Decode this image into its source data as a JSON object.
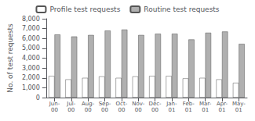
{
  "chart_data": {
    "type": "bar",
    "categories": [
      "Jun-\n00",
      "Jul-\n00",
      "Aug-\n00",
      "Sep-\n00",
      "Oct-\n00",
      "Nov-\n00",
      "Dec-\n00",
      "Jan-\n01",
      "Feb-\n01",
      "Mar-\n01",
      "Apr-\n01",
      "May-\n01"
    ],
    "series": [
      {
        "name": "Profile test requests",
        "color": "#ffffff",
        "values": [
          2200,
          1850,
          2000,
          2150,
          2000,
          2150,
          2200,
          2200,
          1950,
          2000,
          1850,
          1500
        ]
      },
      {
        "name": "Routine test requests",
        "color": "#b0b0b0",
        "values": [
          6400,
          6200,
          6350,
          6800,
          6900,
          6350,
          6480,
          6480,
          5900,
          6580,
          6700,
          5450
        ]
      }
    ],
    "ylabel": "No. of test requests",
    "ylim": [
      0,
      8000
    ],
    "yticks": [
      0,
      1000,
      2000,
      3000,
      4000,
      5000,
      6000,
      7000,
      8000
    ],
    "grid": false,
    "legend": "top"
  }
}
